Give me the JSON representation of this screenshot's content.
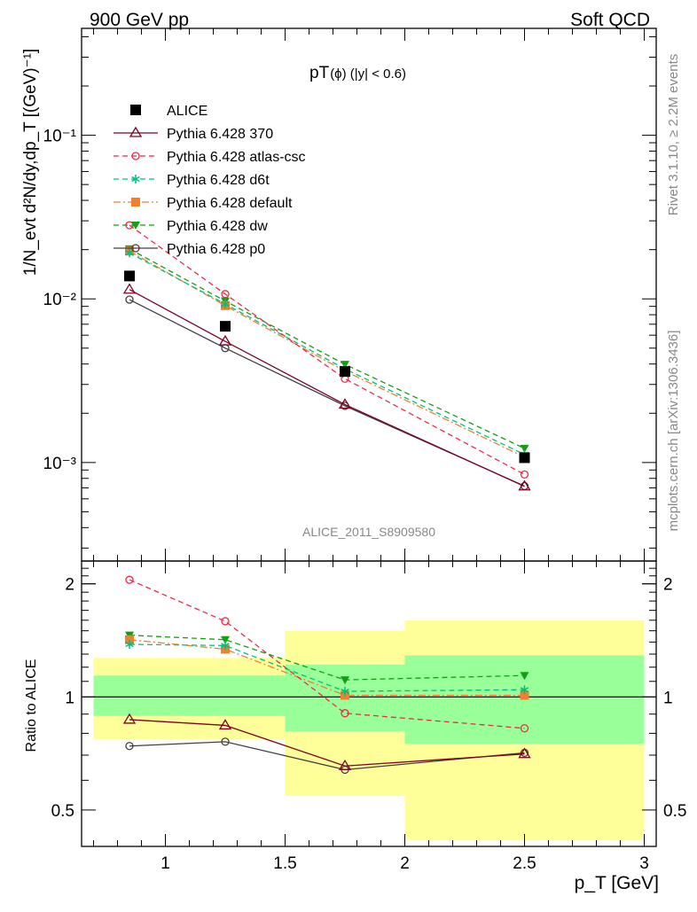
{
  "header": {
    "left": "900 GeV pp",
    "right": "Soft QCD"
  },
  "side": {
    "rivet": "Rivet 3.1.10, ≥ 2.2M events",
    "mcplots": "mcplots.cern.ch [arXiv:1306.3436]"
  },
  "main": {
    "title_main": "pT",
    "title_sub": "(ϕ) (|y| < 0.6)",
    "watermark": "ALICE_2011_S8909580",
    "ylabel": "1/N_evt d²N/dy,dp_T [(GeV)⁻¹]"
  },
  "ratio": {
    "ylabel": "Ratio to ALICE",
    "xlabel": "p_T [GeV]"
  },
  "chart_data": {
    "type": "scatter",
    "x": [
      0.85,
      1.25,
      1.75,
      2.5
    ],
    "x_edges": [
      0.7,
      1.0,
      1.5,
      2.0,
      3.0
    ],
    "xlim": [
      0.65,
      3.05
    ],
    "x_ticks": [
      "1",
      "1.5",
      "2",
      "2.5",
      "3"
    ],
    "main_ylim": [
      0.00025,
      0.45
    ],
    "main_log": true,
    "main_y_ticks": [
      "10⁻³",
      "10⁻²",
      "10⁻¹"
    ],
    "ratio_ylim": [
      0.4,
      2.3
    ],
    "ratio_log": true,
    "ratio_y_ticks": [
      "0.5",
      "1",
      "2"
    ],
    "series": [
      {
        "name": "ALICE",
        "values": [
          0.0138,
          0.0068,
          0.0036,
          0.00107
        ],
        "color": "#000000",
        "marker": "square",
        "dash": "none"
      },
      {
        "name": "Pythia 6.428 370",
        "values": [
          0.0114,
          0.0055,
          0.00226,
          0.000715
        ],
        "color": "#800020",
        "marker": "triangle-open",
        "dash": "solid"
      },
      {
        "name": "Pythia 6.428 atlas-csc",
        "values": [
          0.0282,
          0.0107,
          0.00325,
          0.000845
        ],
        "color": "#f0284a",
        "marker": "circle-open",
        "dash": "dashed"
      },
      {
        "name": "Pythia 6.428 d6t",
        "values": [
          0.0191,
          0.0093,
          0.00373,
          0.00112
        ],
        "color": "#00c080",
        "marker": "star",
        "dash": "dashed"
      },
      {
        "name": "Pythia 6.428 default",
        "values": [
          0.0196,
          0.0091,
          0.00362,
          0.00108
        ],
        "color": "#f08030",
        "marker": "square",
        "dash": "dashdot"
      },
      {
        "name": "Pythia 6.428 dw",
        "values": [
          0.0202,
          0.0097,
          0.00398,
          0.00122
        ],
        "color": "#10a010",
        "marker": "triangle-down",
        "dash": "dashed"
      },
      {
        "name": "Pythia 6.428 p0",
        "values": [
          0.0099,
          0.005,
          0.00222,
          0.000718
        ],
        "color": "#404040",
        "marker": "circle-open",
        "dash": "solid"
      }
    ],
    "ratio_series": [
      {
        "name": "Pythia 6.428 370",
        "values": [
          0.87,
          0.84,
          0.655,
          0.705
        ]
      },
      {
        "name": "Pythia 6.428 atlas-csc",
        "values": [
          2.05,
          1.59,
          0.905,
          0.825
        ]
      },
      {
        "name": "Pythia 6.428 d6t",
        "values": [
          1.38,
          1.37,
          1.035,
          1.045
        ]
      },
      {
        "name": "Pythia 6.428 default",
        "values": [
          1.42,
          1.34,
          1.01,
          1.01
        ]
      },
      {
        "name": "Pythia 6.428 dw",
        "values": [
          1.46,
          1.42,
          1.11,
          1.14
        ]
      },
      {
        "name": "Pythia 6.428 p0",
        "values": [
          0.74,
          0.76,
          0.64,
          0.71
        ]
      }
    ],
    "uncertainty_bands": [
      {
        "x_from": 0.7,
        "x_to": 1.5,
        "stat_lo": 0.89,
        "stat_hi": 1.14,
        "total_lo": 0.77,
        "total_hi": 1.27
      },
      {
        "x_from": 1.5,
        "x_to": 2.0,
        "stat_lo": 0.81,
        "stat_hi": 1.22,
        "total_lo": 0.545,
        "total_hi": 1.5
      },
      {
        "x_from": 2.0,
        "x_to": 3.0,
        "stat_lo": 0.75,
        "stat_hi": 1.29,
        "total_lo": 0.415,
        "total_hi": 1.6
      }
    ],
    "band_colors": {
      "stat": "#99ff99",
      "total": "#ffff99"
    }
  }
}
